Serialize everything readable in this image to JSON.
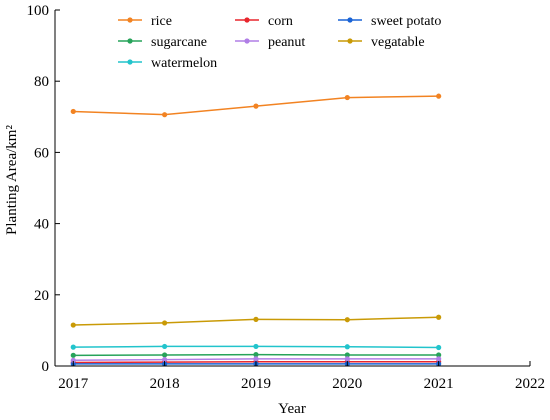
{
  "chart_data": {
    "type": "line",
    "title": "",
    "xlabel": "Year",
    "ylabel": "Planting Area/km²",
    "x": [
      2017,
      2018,
      2019,
      2020,
      2021
    ],
    "xlim": [
      2016.8,
      2022
    ],
    "ylim": [
      0,
      100
    ],
    "xticks": [
      2017,
      2018,
      2019,
      2020,
      2021,
      2022
    ],
    "yticks": [
      0,
      20,
      40,
      60,
      80,
      100
    ],
    "grid": false,
    "legend_position": "top",
    "series": [
      {
        "name": "rice",
        "color": "#f28322",
        "values": [
          71.5,
          70.6,
          73.0,
          75.4,
          75.8
        ]
      },
      {
        "name": "corn",
        "color": "#e8262d",
        "values": [
          1.0,
          1.1,
          1.2,
          1.2,
          1.2
        ]
      },
      {
        "name": "sweet potato",
        "color": "#1a64d6",
        "values": [
          0.6,
          0.6,
          0.6,
          0.6,
          0.6
        ]
      },
      {
        "name": "sugarcane",
        "color": "#27a35a",
        "values": [
          3.0,
          3.1,
          3.2,
          3.1,
          3.1
        ]
      },
      {
        "name": "peanut",
        "color": "#b07ee6",
        "values": [
          1.6,
          1.8,
          2.0,
          2.0,
          2.0
        ]
      },
      {
        "name": "vegatable",
        "color": "#c99a06",
        "values": [
          11.5,
          12.1,
          13.1,
          13.0,
          13.7
        ]
      },
      {
        "name": "watermelon",
        "color": "#22c4cc",
        "values": [
          5.3,
          5.5,
          5.5,
          5.4,
          5.2
        ]
      }
    ]
  }
}
